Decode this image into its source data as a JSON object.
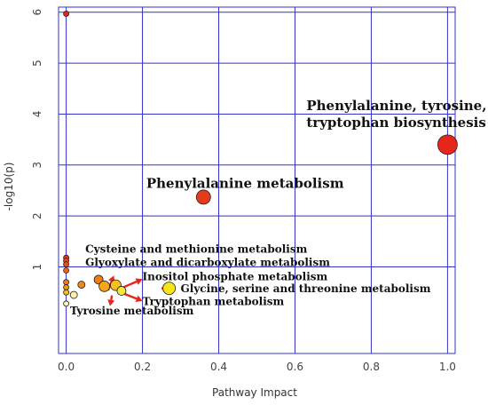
{
  "chart_data": {
    "type": "scatter",
    "xlabel": "Pathway Impact",
    "ylabel": "-log10(p)",
    "xlim": [
      -0.02,
      1.02
    ],
    "ylim": [
      -0.7,
      6.1
    ],
    "x_ticks": [
      0.0,
      0.2,
      0.4,
      0.6,
      0.8,
      1.0
    ],
    "x_tick_labels": [
      "0.0",
      "0.2",
      "0.4",
      "0.6",
      "0.8",
      "1.0"
    ],
    "y_ticks": [
      1,
      2,
      3,
      4,
      5,
      6
    ],
    "y_tick_labels": [
      "1",
      "2",
      "3",
      "4",
      "5",
      "6"
    ],
    "grid": true,
    "grid_color": "#3333cc",
    "colors": {
      "point_fill_high": "#e8251b",
      "point_fill_mid": "#f08a14",
      "point_fill_low": "#f6e51a",
      "point_fill_pale": "#fbf5c4",
      "arrow": "#e8251b"
    },
    "points": [
      {
        "x": 1.0,
        "y": 3.4,
        "r": 11,
        "color": "#e8251b"
      },
      {
        "x": 0.36,
        "y": 2.37,
        "r": 8,
        "color": "#e33b1c"
      },
      {
        "x": 0.0,
        "y": 5.97,
        "r": 3,
        "color": "#e8251b"
      },
      {
        "x": 0.0,
        "y": 1.18,
        "r": 3,
        "color": "#e8351b"
      },
      {
        "x": 0.0,
        "y": 1.12,
        "r": 3,
        "color": "#e8451b"
      },
      {
        "x": 0.0,
        "y": 1.05,
        "r": 3,
        "color": "#e9501b"
      },
      {
        "x": 0.0,
        "y": 0.93,
        "r": 3,
        "color": "#ec651b"
      },
      {
        "x": 0.0,
        "y": 0.7,
        "r": 3,
        "color": "#f07a18"
      },
      {
        "x": 0.0,
        "y": 0.6,
        "r": 3,
        "color": "#f29a16"
      },
      {
        "x": 0.0,
        "y": 0.5,
        "r": 3,
        "color": "#f6c21a"
      },
      {
        "x": 0.0,
        "y": 0.28,
        "r": 3,
        "color": "#fbf5c4"
      },
      {
        "x": 0.04,
        "y": 0.65,
        "r": 4,
        "color": "#f08a14"
      },
      {
        "x": 0.02,
        "y": 0.45,
        "r": 4,
        "color": "#fbf3a8"
      },
      {
        "x": 0.085,
        "y": 0.75,
        "r": 5,
        "color": "#ef7e14"
      },
      {
        "x": 0.1,
        "y": 0.62,
        "r": 6,
        "color": "#f3a716"
      },
      {
        "x": 0.13,
        "y": 0.64,
        "r": 6,
        "color": "#f5c21a"
      },
      {
        "x": 0.145,
        "y": 0.53,
        "r": 5,
        "color": "#f8e53a"
      },
      {
        "x": 0.27,
        "y": 0.58,
        "r": 7,
        "color": "#f6e51a"
      }
    ],
    "annotations": [
      {
        "text": "Phenylalanine, tyrosine, and",
        "x": 0.63,
        "y": 4.08,
        "size": 15
      },
      {
        "text": "tryptophan biosynthesis",
        "x": 0.63,
        "y": 3.75,
        "size": 15
      },
      {
        "text": "Phenylalanine metabolism",
        "x": 0.21,
        "y": 2.55,
        "size": 15
      },
      {
        "text": "Cysteine and methionine metabolism",
        "x": 0.05,
        "y": 1.28,
        "size": 12
      },
      {
        "text": "Glyoxylate and dicarboxylate metabolism",
        "x": 0.05,
        "y": 1.02,
        "size": 12
      },
      {
        "text": "Inositol phosphate metabolism",
        "x": 0.2,
        "y": 0.74,
        "size": 12
      },
      {
        "text": "Glycine, serine and threonine metabolism",
        "x": 0.3,
        "y": 0.5,
        "size": 12
      },
      {
        "text": "Tryptophan metabolism",
        "x": 0.2,
        "y": 0.25,
        "size": 12
      },
      {
        "text": "Tyrosine metabolism",
        "x": 0.01,
        "y": 0.07,
        "size": 12
      }
    ],
    "arrows": [
      {
        "from": [
          0.11,
          0.54
        ],
        "to": [
          0.125,
          0.83
        ]
      },
      {
        "from": [
          0.15,
          0.6
        ],
        "to": [
          0.2,
          0.76
        ]
      },
      {
        "from": [
          0.15,
          0.48
        ],
        "to": [
          0.2,
          0.33
        ]
      },
      {
        "from": [
          0.12,
          0.44
        ],
        "to": [
          0.115,
          0.23
        ]
      },
      {
        "from": [
          0.25,
          0.58
        ],
        "to": [
          0.27,
          0.58
        ]
      }
    ]
  }
}
